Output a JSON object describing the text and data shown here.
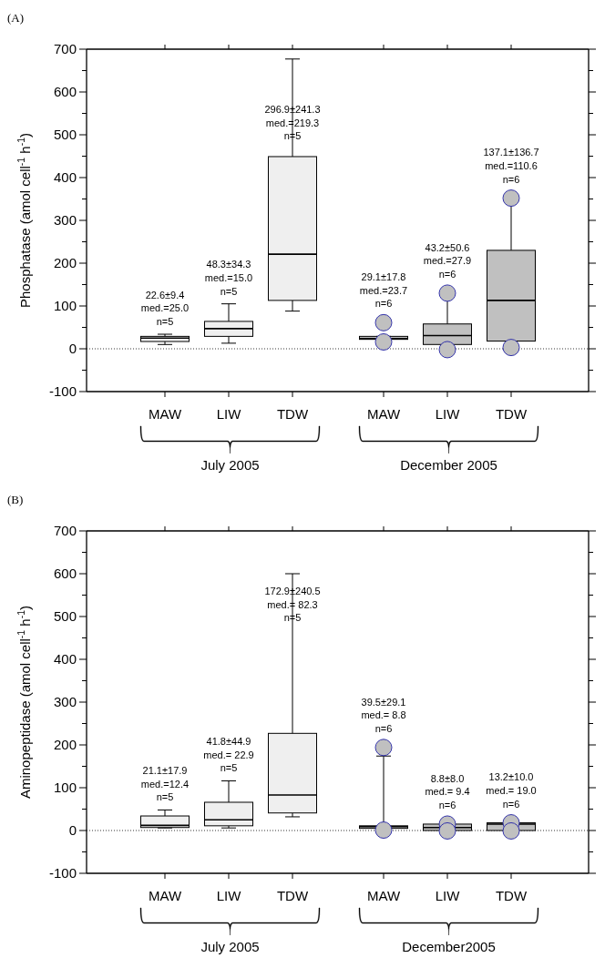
{
  "chart_data": [
    {
      "type": "box",
      "title": "(A)",
      "ylabel": "Phosphatase (amol cell$^{-1}$ h$^{-1}$)",
      "xlabel": "July 2005",
      "categories": [
        "MAW",
        "LIW",
        "TDW"
      ],
      "boxes": [
        {
          "low": 10,
          "q1": 17,
          "median": 25,
          "q3": 29,
          "high": 34
        },
        {
          "low": 13,
          "q1": 29,
          "median": 47,
          "q3": 64,
          "high": 105
        },
        {
          "low": 88,
          "q1": 113,
          "median": 221,
          "q3": 449,
          "high": 677
        }
      ],
      "colors": [
        "#efefef",
        "#efefef",
        "#efefef"
      ],
      "ylim": [
        -100,
        700
      ],
      "yticks": [
        -100,
        {
          "value": -50,
          "label": null
        },
        0,
        {
          "value": 50,
          "label": null
        },
        100,
        {
          "value": 150,
          "label": null
        },
        200,
        {
          "value": 250,
          "label": null
        },
        300,
        {
          "value": 350,
          "label": null
        },
        400,
        {
          "value": 450,
          "label": null
        },
        500,
        {
          "value": 550,
          "label": null
        },
        600,
        {
          "value": 650,
          "label": null
        },
        700
      ],
      "ref_lines": [
        {
          "axis": "y",
          "value": 0,
          "line_style": "dotted"
        }
      ],
      "annotations": [
        "22.6±9.4\nmed.=25.0\nn=5",
        "48.3±34.3\nmed.=15.0\nn=5",
        "296.9±241.3\nmed.=219.3\nn=5"
      ]
    },
    {
      "type": "box",
      "xlabel": "December 2005",
      "categories": [
        "MAW",
        "LIW",
        "TDW"
      ],
      "boxes": [
        {
          "low": 22,
          "q1": 22,
          "median": 24,
          "q3": 29,
          "high": 29,
          "outliers": [
            61,
            16
          ]
        },
        {
          "low": 10,
          "q1": 10,
          "median": 31,
          "q3": 58,
          "high": 130,
          "outliers": [
            130,
            -2
          ]
        },
        {
          "low": 18,
          "q1": 18,
          "median": 113,
          "q3": 230,
          "high": 352,
          "outliers": [
            352,
            3
          ]
        }
      ],
      "colors": [
        "#c0c0c0",
        "#c0c0c0",
        "#c0c0c0"
      ],
      "ylim": [
        -100,
        700
      ],
      "yticks": [
        -100,
        {
          "value": -50,
          "label": null
        },
        0,
        {
          "value": 50,
          "label": null
        },
        100,
        {
          "value": 150,
          "label": null
        },
        200,
        {
          "value": 250,
          "label": null
        },
        300,
        {
          "value": 350,
          "label": null
        },
        400,
        {
          "value": 450,
          "label": null
        },
        500,
        {
          "value": 550,
          "label": null
        },
        600,
        {
          "value": 650,
          "label": null
        },
        700
      ],
      "tick_labels": "x",
      "ref_lines": [
        {
          "axis": "y",
          "value": 0,
          "line_style": "dotted"
        }
      ],
      "annotations": [
        "29.1±17.8\nmed.=23.7\nn=6",
        "43.2±50.6\nmed.=27.9\nn=6",
        "137.1±136.7\nmed.=110.6\nn=6"
      ]
    },
    {
      "type": "box",
      "title": "(B)",
      "ylabel": "Aminopeptidase (amol cell$^{-1}$ h$^{-1}$)",
      "xlabel": "July 2005",
      "categories": [
        "MAW",
        "LIW",
        "TDW"
      ],
      "boxes": [
        {
          "low": 6,
          "q1": 7,
          "median": 12,
          "q3": 34,
          "high": 48
        },
        {
          "low": 6,
          "q1": 11,
          "median": 25,
          "q3": 66,
          "high": 116
        },
        {
          "low": 32,
          "q1": 41,
          "median": 83,
          "q3": 227,
          "high": 600
        }
      ],
      "colors": [
        "#efefef",
        "#efefef",
        "#efefef"
      ],
      "ylim": [
        -100,
        700
      ],
      "yticks": [
        -100,
        {
          "value": -50,
          "label": null
        },
        0,
        {
          "value": 50,
          "label": null
        },
        100,
        {
          "value": 150,
          "label": null
        },
        200,
        {
          "value": 250,
          "label": null
        },
        300,
        {
          "value": 350,
          "label": null
        },
        400,
        {
          "value": 450,
          "label": null
        },
        500,
        {
          "value": 550,
          "label": null
        },
        600,
        {
          "value": 650,
          "label": null
        },
        700
      ],
      "ref_lines": [
        {
          "axis": "y",
          "value": 0,
          "line_style": "dotted"
        }
      ],
      "annotations": [
        "21.1±17.9\nmed.=12.4\nn=5",
        "41.8±44.9\nmed.= 22.9\nn=5",
        "172.9±240.5\nmed.= 82.3\nn=5"
      ]
    },
    {
      "type": "box",
      "xlabel": "December2005",
      "categories": [
        "MAW",
        "LIW",
        "TDW"
      ],
      "boxes": [
        {
          "low": 5,
          "q1": 5,
          "median": 9,
          "q3": 11,
          "high": 174,
          "outliers": [
            194,
            1
          ]
        },
        {
          "low": 0,
          "q1": 0,
          "median": 7,
          "q3": 15,
          "high": 15,
          "outliers": [
            15,
            -1
          ]
        },
        {
          "low": 0,
          "q1": 0,
          "median": 15,
          "q3": 18,
          "high": 18,
          "outliers": [
            18,
            -1
          ]
        }
      ],
      "colors": [
        "#c0c0c0",
        "#c0c0c0",
        "#c0c0c0"
      ],
      "ylim": [
        -100,
        700
      ],
      "yticks": [
        -100,
        {
          "value": -50,
          "label": null
        },
        0,
        {
          "value": 50,
          "label": null
        },
        100,
        {
          "value": 150,
          "label": null
        },
        200,
        {
          "value": 250,
          "label": null
        },
        300,
        {
          "value": 350,
          "label": null
        },
        400,
        {
          "value": 450,
          "label": null
        },
        500,
        {
          "value": 550,
          "label": null
        },
        600,
        {
          "value": 650,
          "label": null
        },
        700
      ],
      "tick_labels": "x",
      "ref_lines": [
        {
          "axis": "y",
          "value": 0,
          "line_style": "dotted"
        }
      ],
      "annotations": [
        "39.5±29.1\nmed.= 8.8\nn=6",
        "8.8±8.0\nmed.= 9.4\nn=6",
        "13.2±10.0\nmed.= 19.0\nn=6"
      ]
    }
  ]
}
